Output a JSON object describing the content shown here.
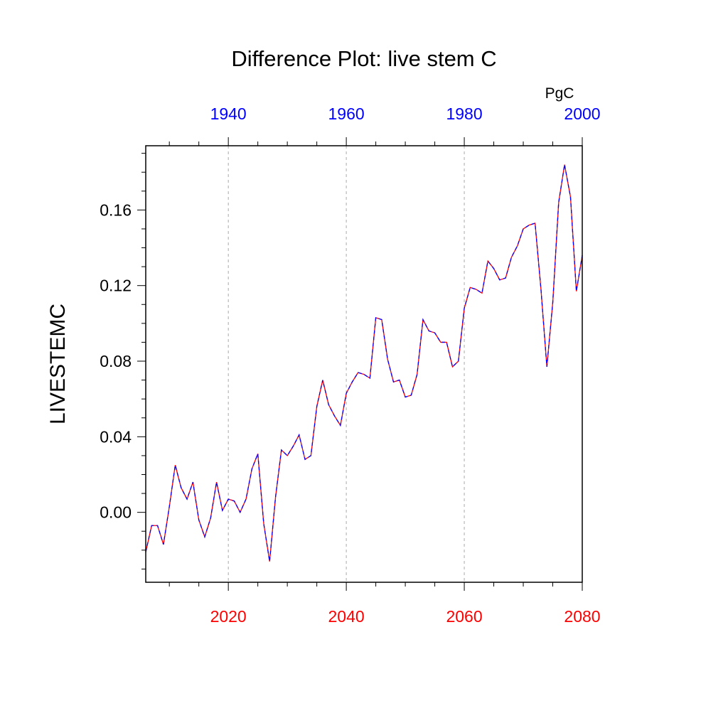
{
  "chart_data": {
    "type": "line",
    "title": "Difference Plot: live stem C",
    "ylabel": "LIVESTEMC",
    "units": "PgC",
    "xlim": [
      2006,
      2080
    ],
    "ylim": [
      -0.037,
      0.194
    ],
    "top_xlim": [
      1926,
      2000
    ],
    "yticks": [
      "0.00",
      "0.04",
      "0.08",
      "0.12",
      "0.16"
    ],
    "ytick_values": [
      0.0,
      0.04,
      0.08,
      0.12,
      0.16
    ],
    "bottom_xticks": [
      "2020",
      "2040",
      "2060",
      "2080"
    ],
    "bottom_xtick_values": [
      2020,
      2040,
      2060,
      2080
    ],
    "top_xticks": [
      "1940",
      "1960",
      "1980",
      "2000"
    ],
    "top_xtick_values": [
      1940,
      1960,
      1980,
      2000
    ],
    "grid_x": [
      2020,
      2040,
      2060
    ],
    "colors": {
      "series_a": "#ff0000",
      "series_b": "#0000ff",
      "bottom_ticks": "#ff0000",
      "top_ticks": "#0000ff",
      "grid": "#aaaaaa"
    },
    "series": [
      {
        "x": [
          2006,
          2007,
          2008,
          2009,
          2010,
          2011,
          2012,
          2013,
          2014,
          2015,
          2016,
          2017,
          2018,
          2019,
          2020,
          2021,
          2022,
          2023,
          2024,
          2025,
          2026,
          2027,
          2028,
          2029,
          2030,
          2031,
          2032,
          2033,
          2034,
          2035,
          2036,
          2037,
          2038,
          2039,
          2040,
          2041,
          2042,
          2043,
          2044,
          2045,
          2046,
          2047,
          2048,
          2049,
          2050,
          2051,
          2052,
          2053,
          2054,
          2055,
          2056,
          2057,
          2058,
          2059,
          2060,
          2061,
          2062,
          2063,
          2064,
          2065,
          2066,
          2067,
          2068,
          2069,
          2070,
          2071,
          2072,
          2073,
          2074,
          2075,
          2076,
          2077,
          2078,
          2079,
          2080
        ],
        "values": [
          -0.021,
          -0.007,
          -0.007,
          -0.017,
          0.003,
          0.025,
          0.013,
          0.007,
          0.016,
          -0.004,
          -0.013,
          -0.003,
          0.016,
          0.001,
          0.007,
          0.006,
          0.0,
          0.007,
          0.023,
          0.031,
          -0.006,
          -0.026,
          0.008,
          0.033,
          0.03,
          0.035,
          0.041,
          0.028,
          0.03,
          0.056,
          0.07,
          0.057,
          0.051,
          0.046,
          0.063,
          0.069,
          0.074,
          0.073,
          0.071,
          0.103,
          0.102,
          0.081,
          0.069,
          0.07,
          0.061,
          0.062,
          0.073,
          0.102,
          0.096,
          0.095,
          0.09,
          0.09,
          0.077,
          0.08,
          0.108,
          0.119,
          0.118,
          0.116,
          0.133,
          0.129,
          0.123,
          0.124,
          0.135,
          0.141,
          0.15,
          0.152,
          0.153,
          0.118,
          0.077,
          0.111,
          0.164,
          0.184,
          0.167,
          0.117,
          0.136
        ]
      }
    ]
  }
}
